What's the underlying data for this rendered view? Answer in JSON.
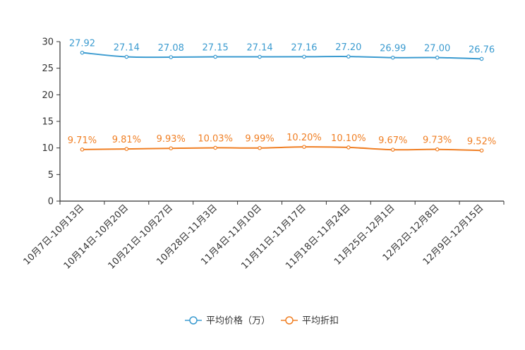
{
  "chart_data": {
    "type": "line",
    "categories": [
      "10月7日-10月13日",
      "10月14日-10月20日",
      "10月21日-10月27日",
      "10月28日-11月3日",
      "11月4日-11月10日",
      "11月11日-11月17日",
      "11月18日-11月24日",
      "11月25日-12月1日",
      "12月2日-12月8日",
      "12月9日-12月15日"
    ],
    "series": [
      {
        "name": "平均价格（万）",
        "color": "#3b9bd0",
        "values": [
          27.92,
          27.14,
          27.08,
          27.15,
          27.14,
          27.16,
          27.2,
          26.99,
          27.0,
          26.76
        ],
        "labels": [
          "27.92",
          "27.14",
          "27.08",
          "27.15",
          "27.14",
          "27.16",
          "27.20",
          "26.99",
          "27.00",
          "26.76"
        ]
      },
      {
        "name": "平均折扣",
        "color": "#f07f24",
        "values": [
          9.71,
          9.81,
          9.93,
          10.03,
          9.99,
          10.2,
          10.1,
          9.67,
          9.73,
          9.52
        ],
        "labels": [
          "9.71%",
          "9.81%",
          "9.93%",
          "10.03%",
          "9.99%",
          "10.20%",
          "10.10%",
          "9.67%",
          "9.73%",
          "9.52%"
        ]
      }
    ],
    "yticks": [
      "0",
      "5",
      "10",
      "15",
      "20",
      "25",
      "30"
    ],
    "ylim": [
      0,
      30
    ],
    "title": "",
    "xlabel": "",
    "ylabel": "",
    "legend_position": "bottom-center"
  }
}
